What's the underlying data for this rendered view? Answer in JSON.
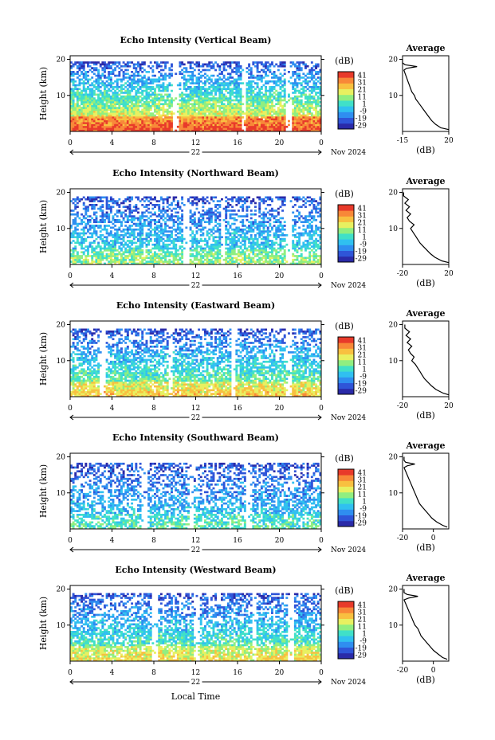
{
  "x_axis_label": "Local Time",
  "colorbar": {
    "unit": "(dB)",
    "ticks": [
      "41",
      "31",
      "21",
      "11",
      "1",
      "-9",
      "-19",
      "-29"
    ],
    "colors": [
      "#2a2aa8",
      "#2f55d8",
      "#2f8ef0",
      "#30c0f0",
      "#40e0c8",
      "#90ee80",
      "#e8f060",
      "#f8c040",
      "#f88838",
      "#e83a2a"
    ]
  },
  "average_panel": {
    "title": "Average",
    "xlabel": "(dB)"
  },
  "chart_data": [
    {
      "type": "heatmap",
      "title": "Echo Intensity (Vertical Beam)",
      "ylabel": "Height (km)",
      "yticks": [
        "20",
        "10"
      ],
      "ylim": [
        0,
        21
      ],
      "xticks": [
        "0",
        "4",
        "8",
        "12",
        "16",
        "20",
        "0"
      ],
      "xlim": [
        0,
        24
      ],
      "day_label": "22",
      "date_label": "Nov 2024",
      "cloud_top_km": 19,
      "intensity_level": 1.0,
      "gap_hours": [
        10,
        16.5,
        20.8
      ],
      "average": {
        "xticks": [
          "-15",
          "20"
        ],
        "xlim": [
          -15,
          20
        ],
        "height_km": [
          0.5,
          1,
          2,
          3,
          4,
          5,
          6,
          7,
          8,
          9,
          10,
          11,
          12,
          13,
          14,
          15,
          16,
          17,
          17.5,
          18,
          18.5,
          19,
          20
        ],
        "db": [
          20,
          14,
          10,
          7,
          5,
          3,
          1,
          -1,
          -3,
          -5,
          -6,
          -8,
          -9,
          -10,
          -11,
          -12,
          -13,
          -14,
          -12,
          -4,
          -13,
          -15,
          -15
        ]
      }
    },
    {
      "type": "heatmap",
      "title": "Echo Intensity (Northward Beam)",
      "ylabel": "Height (km)",
      "yticks": [
        "20",
        "10"
      ],
      "ylim": [
        0,
        21
      ],
      "xticks": [
        "0",
        "4",
        "8",
        "12",
        "16",
        "20",
        "0"
      ],
      "xlim": [
        0,
        24
      ],
      "day_label": "22",
      "date_label": "Nov 2024",
      "cloud_top_km": 18.5,
      "intensity_level": 0.55,
      "gap_hours": [
        11,
        14.5,
        20.8
      ],
      "average": {
        "xticks": [
          "-20",
          "20"
        ],
        "xlim": [
          -20,
          20
        ],
        "height_km": [
          0.5,
          1,
          2,
          3,
          4,
          5,
          6,
          7,
          8,
          9,
          10,
          11,
          12,
          13,
          14,
          15,
          16,
          17,
          18,
          19,
          20
        ],
        "db": [
          20,
          14,
          8,
          4,
          1,
          -2,
          -5,
          -7,
          -9,
          -11,
          -13,
          -10,
          -14,
          -16,
          -13,
          -17,
          -14,
          -18,
          -15,
          -19,
          -19
        ]
      }
    },
    {
      "type": "heatmap",
      "title": "Echo Intensity (Eastward Beam)",
      "ylabel": "Height (km)",
      "yticks": [
        "20",
        "10"
      ],
      "ylim": [
        0,
        21
      ],
      "xticks": [
        "0",
        "4",
        "8",
        "12",
        "16",
        "20",
        "0"
      ],
      "xlim": [
        0,
        24
      ],
      "day_label": "22",
      "date_label": "Nov 2024",
      "cloud_top_km": 18.5,
      "intensity_level": 0.75,
      "gap_hours": [
        3,
        9.5,
        15.5,
        20.8
      ],
      "average": {
        "xticks": [
          "-20",
          "20"
        ],
        "xlim": [
          -20,
          20
        ],
        "height_km": [
          0.5,
          1,
          2,
          3,
          4,
          5,
          6,
          7,
          8,
          9,
          10,
          11,
          12,
          13,
          14,
          15,
          16,
          17,
          18,
          19,
          20
        ],
        "db": [
          20,
          15,
          9,
          5,
          2,
          -1,
          -3,
          -5,
          -7,
          -9,
          -12,
          -10,
          -13,
          -15,
          -12,
          -16,
          -13,
          -17,
          -14,
          -18,
          -18
        ]
      }
    },
    {
      "type": "heatmap",
      "title": "Echo Intensity (Southward Beam)",
      "ylabel": "Height (km)",
      "yticks": [
        "20",
        "10"
      ],
      "ylim": [
        0,
        21
      ],
      "xticks": [
        "0",
        "4",
        "8",
        "12",
        "16",
        "20",
        "0"
      ],
      "xlim": [
        0,
        24
      ],
      "day_label": "22",
      "date_label": "Nov 2024",
      "cloud_top_km": 18,
      "intensity_level": 0.45,
      "gap_hours": [
        7,
        11.5,
        17
      ],
      "average": {
        "xticks": [
          "-20",
          "0"
        ],
        "xlim": [
          -20,
          10
        ],
        "height_km": [
          0.5,
          1,
          2,
          3,
          4,
          5,
          6,
          7,
          8,
          9,
          10,
          11,
          12,
          13,
          14,
          15,
          16,
          17,
          17.5,
          18,
          18.5,
          19,
          20
        ],
        "db": [
          9,
          6,
          2,
          -1,
          -3,
          -5,
          -7,
          -9,
          -10,
          -11,
          -12,
          -13,
          -14,
          -15,
          -16,
          -17,
          -18,
          -19,
          -17,
          -12,
          -18,
          -19,
          -19
        ]
      }
    },
    {
      "type": "heatmap",
      "title": "Echo Intensity (Westward Beam)",
      "ylabel": "Height (km)",
      "yticks": [
        "20",
        "10"
      ],
      "ylim": [
        0,
        21
      ],
      "xticks": [
        "0",
        "4",
        "8",
        "12",
        "16",
        "20",
        "0"
      ],
      "xlim": [
        0,
        24
      ],
      "day_label": "22",
      "date_label": "Nov 2024",
      "cloud_top_km": 18.5,
      "intensity_level": 0.7,
      "gap_hours": [
        8,
        12,
        17.5,
        21
      ],
      "average": {
        "xticks": [
          "-20",
          "0"
        ],
        "xlim": [
          -20,
          10
        ],
        "height_km": [
          0.5,
          1,
          2,
          3,
          4,
          5,
          6,
          7,
          8,
          9,
          10,
          11,
          12,
          13,
          14,
          15,
          16,
          17,
          17.5,
          18,
          18.5,
          19,
          20
        ],
        "db": [
          9,
          6,
          3,
          0,
          -2,
          -4,
          -6,
          -8,
          -9,
          -10,
          -12,
          -13,
          -14,
          -15,
          -16,
          -17,
          -18,
          -19,
          -16,
          -10,
          -17,
          -19,
          -19
        ]
      }
    }
  ]
}
